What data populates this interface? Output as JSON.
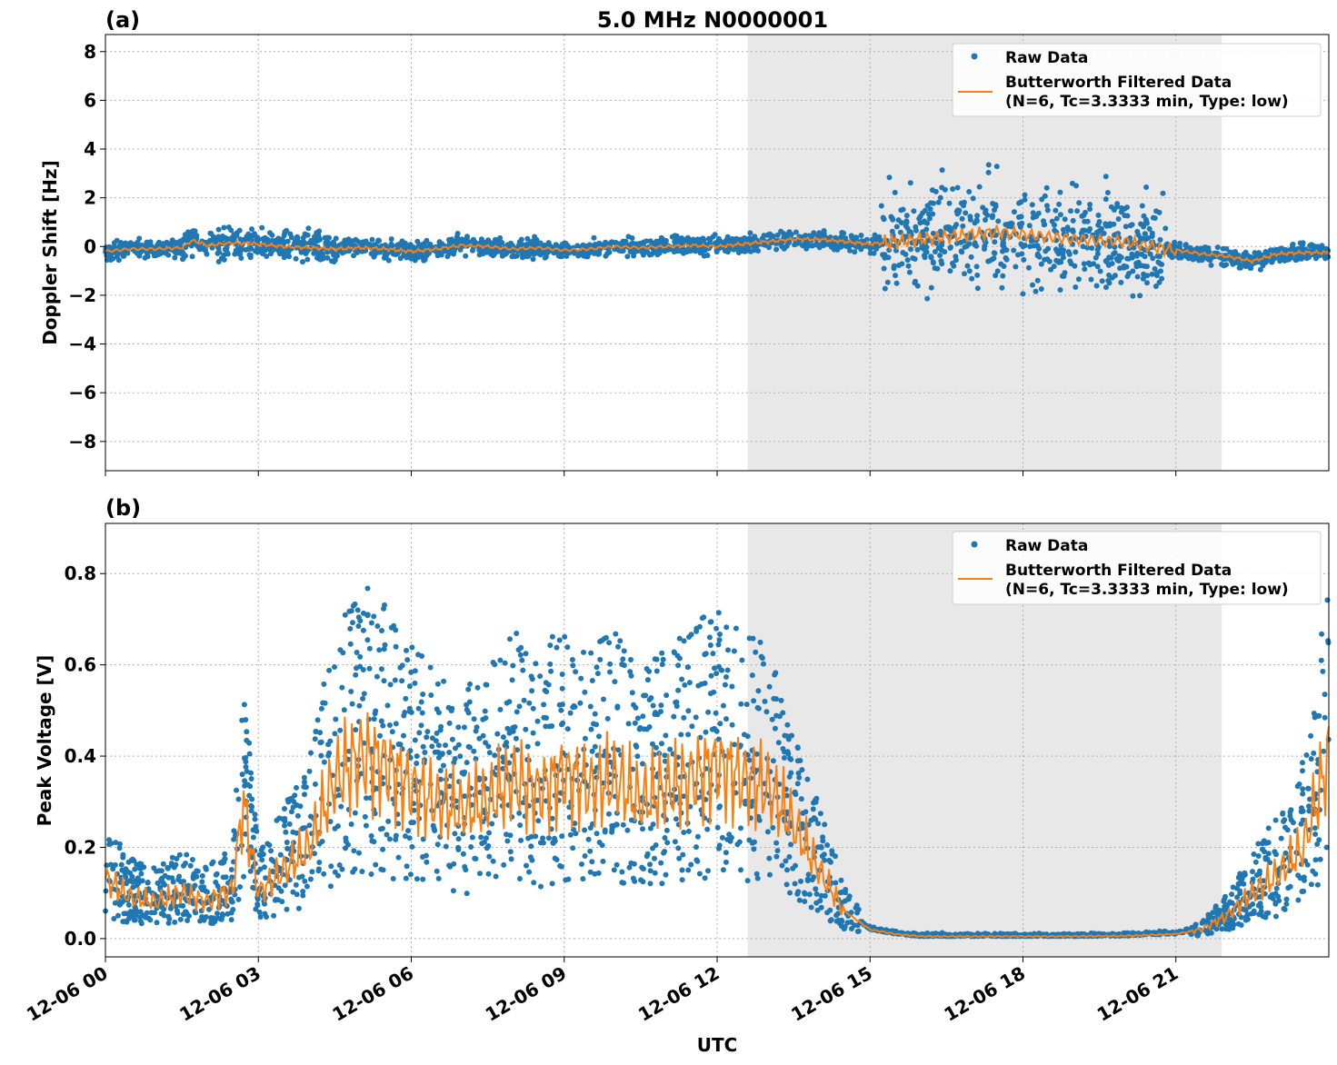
{
  "figure": {
    "title": "5.0 MHz N0000001",
    "xlabel": "UTC"
  },
  "style": {
    "raw_color": "#1f77b4",
    "filtered_color": "#ff7f0e",
    "shade_color": "#e8e8e8",
    "grid_color": "#b0b0b0"
  },
  "legend": {
    "raw": "Raw Data",
    "filtered_line1": "Butterworth Filtered Data",
    "filtered_line2": "(N=6, Tc=3.3333 min, Type: low)"
  },
  "chart_data": [
    {
      "type": "scatter",
      "panel_label": "(a)",
      "title": "5.0 MHz N0000001",
      "xlabel": "",
      "ylabel": "Doppler Shift [Hz]",
      "xlim_hours": [
        0,
        24
      ],
      "ylim": [
        -9.2,
        8.7
      ],
      "yticks": [
        8,
        6,
        4,
        2,
        0,
        -2,
        -4,
        -6,
        -8
      ],
      "ytick_labels": [
        "8",
        "6",
        "4",
        "2",
        "0",
        "−2",
        "−4",
        "−6",
        "−8"
      ],
      "shaded_region_hours": [
        12.6,
        21.9
      ],
      "grid": true,
      "legend_position": "top-right",
      "series": [
        {
          "name": "Raw Data",
          "kind": "scatter",
          "description": "dense 1-s samples"
        },
        {
          "name": "Butterworth Filtered Data (N=6, Tc=3.3333 min, Type: low)",
          "kind": "line",
          "x_hours": [
            0,
            0.5,
            1,
            1.5,
            1.7,
            2,
            2.5,
            3,
            3.5,
            4,
            4.5,
            5,
            5.5,
            6,
            6.5,
            7,
            7.5,
            8,
            8.5,
            9,
            9.5,
            10,
            10.5,
            11,
            11.5,
            12,
            12.5,
            13,
            13.5,
            14,
            14.5,
            15,
            15.5,
            16,
            16.5,
            17,
            17.5,
            18,
            18.5,
            19,
            19.5,
            20,
            20.5,
            21,
            21.5,
            22,
            22.5,
            23,
            23.5,
            24
          ],
          "values": [
            -0.2,
            -0.1,
            -0.1,
            -0.05,
            0.25,
            0.05,
            0.15,
            0.1,
            0.0,
            -0.05,
            -0.1,
            -0.05,
            -0.1,
            -0.2,
            -0.1,
            0.05,
            0.0,
            -0.1,
            -0.05,
            -0.15,
            -0.1,
            0.0,
            -0.05,
            0.0,
            0.05,
            0.0,
            0.1,
            0.2,
            0.3,
            0.3,
            0.2,
            0.1,
            0.2,
            0.3,
            0.4,
            0.5,
            0.6,
            0.5,
            0.4,
            0.3,
            0.25,
            0.2,
            0.0,
            -0.15,
            -0.3,
            -0.4,
            -0.6,
            -0.3,
            -0.25,
            -0.25
          ]
        }
      ]
    },
    {
      "type": "scatter",
      "panel_label": "(b)",
      "title": "",
      "xlabel": "UTC",
      "ylabel": "Peak Voltage [V]",
      "xlim_hours": [
        0,
        24
      ],
      "ylim": [
        -0.04,
        0.91
      ],
      "yticks": [
        0.8,
        0.6,
        0.4,
        0.2,
        0.0
      ],
      "ytick_labels": [
        "0.8",
        "0.6",
        "0.4",
        "0.2",
        "0.0"
      ],
      "xtick_hours": [
        0,
        3,
        6,
        9,
        12,
        15,
        18,
        21
      ],
      "xtick_labels": [
        "12-06 00",
        "12-06 03",
        "12-06 06",
        "12-06 09",
        "12-06 12",
        "12-06 15",
        "12-06 18",
        "12-06 21"
      ],
      "shaded_region_hours": [
        12.6,
        21.9
      ],
      "grid": true,
      "legend_position": "top-right",
      "series": [
        {
          "name": "Raw Data",
          "kind": "scatter",
          "description": "dense 1-s samples"
        },
        {
          "name": "Butterworth Filtered Data (N=6, Tc=3.3333 min, Type: low)",
          "kind": "line",
          "x_hours": [
            0,
            0.5,
            1,
            1.5,
            2,
            2.5,
            2.7,
            3,
            3.5,
            4,
            4.5,
            5,
            5.5,
            6,
            6.5,
            7,
            7.5,
            8,
            8.5,
            9,
            9.5,
            10,
            10.5,
            11,
            11.5,
            12,
            12.5,
            13,
            13.5,
            14,
            14.5,
            15,
            15.5,
            16,
            17,
            18,
            19,
            20,
            21,
            21.5,
            22,
            22.5,
            23,
            23.5,
            24
          ],
          "values": [
            0.13,
            0.09,
            0.08,
            0.1,
            0.08,
            0.11,
            0.3,
            0.1,
            0.15,
            0.2,
            0.35,
            0.4,
            0.38,
            0.33,
            0.3,
            0.28,
            0.3,
            0.35,
            0.32,
            0.36,
            0.33,
            0.35,
            0.3,
            0.33,
            0.35,
            0.38,
            0.35,
            0.33,
            0.25,
            0.15,
            0.06,
            0.02,
            0.01,
            0.005,
            0.005,
            0.005,
            0.005,
            0.006,
            0.01,
            0.02,
            0.05,
            0.1,
            0.14,
            0.2,
            0.4
          ]
        }
      ]
    }
  ]
}
